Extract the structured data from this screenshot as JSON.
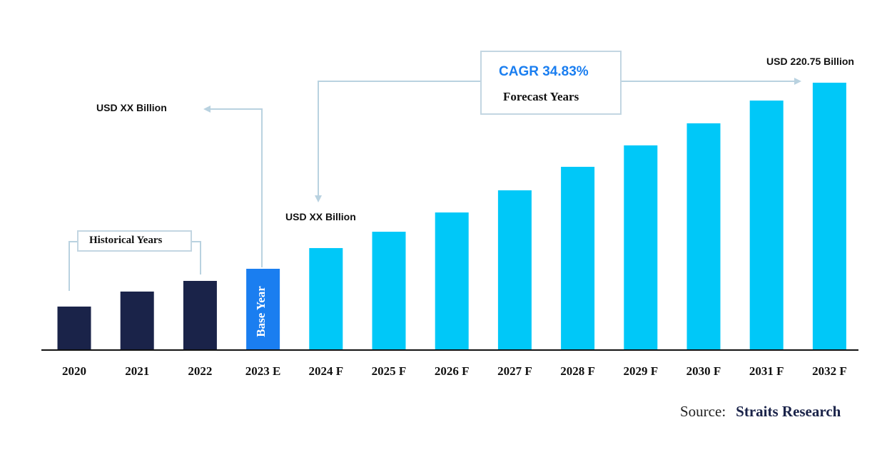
{
  "chart_data": {
    "type": "bar",
    "categories": [
      "2020",
      "2021",
      "2022",
      "2023 E",
      "2024 F",
      "2025 F",
      "2026 F",
      "2027 F",
      "2028 F",
      "2029 F",
      "2030 F",
      "2031 F",
      "2032 F"
    ],
    "values": [
      35.9,
      48.3,
      57.1,
      67.1,
      84.2,
      97.7,
      113.6,
      131.9,
      151.3,
      169.0,
      187.2,
      206.0,
      220.75
    ],
    "value_unit": "USD Billion",
    "ylim": [
      0,
      220.75
    ],
    "grid": false,
    "bar_groups": [
      "historical",
      "historical",
      "historical",
      "base",
      "forecast",
      "forecast",
      "forecast",
      "forecast",
      "forecast",
      "forecast",
      "forecast",
      "forecast",
      "forecast"
    ],
    "colors": {
      "historical": "#1a2349",
      "base": "#1a7ef0",
      "forecast": "#00c8f8",
      "connector": "#b9d2e0"
    },
    "annotations": {
      "historical_label": "Historical Years",
      "base_label": "Base Year",
      "cagr": "CAGR 34.83%",
      "forecast_label": "Forecast Years",
      "value_2023": "USD XX Billion",
      "value_2024": "USD XX Billion",
      "value_2032": "USD 220.75 Billion"
    }
  },
  "source": {
    "prefix": "Source:",
    "name": "Straits Research"
  }
}
